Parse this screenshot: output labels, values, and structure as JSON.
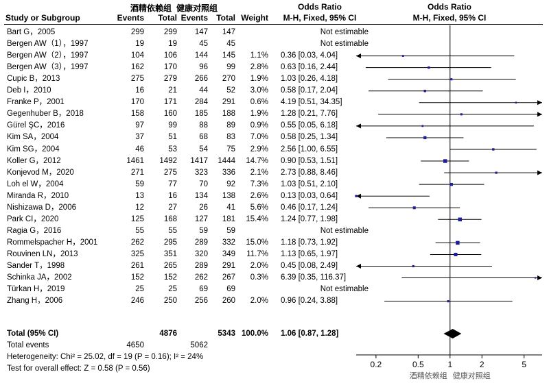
{
  "header": {
    "group1": "酒精依赖组",
    "group2": "健康对照组",
    "or_left_title": "Odds Ratio",
    "or_right_title": "Odds Ratio",
    "col_study": "Study or Subgroup",
    "col_events1": "Events",
    "col_total1": "Total",
    "col_events2": "Events",
    "col_total2": "Total",
    "col_weight": "Weight",
    "col_method_left": "M-H, Fixed, 95% CI",
    "col_method_right": "M-H, Fixed, 95% CI"
  },
  "rows": [
    {
      "study": "Bart G，2005",
      "e1": "299",
      "t1": "299",
      "e2": "147",
      "t2": "147",
      "weight": "",
      "ci_text": "Not estimable"
    },
    {
      "study": "Bergen AW（1），1997",
      "e1": "19",
      "t1": "19",
      "e2": "45",
      "t2": "45",
      "weight": "",
      "ci_text": "Not estimable"
    },
    {
      "study": "Bergen AW（2），1997",
      "e1": "104",
      "t1": "106",
      "e2": "144",
      "t2": "145",
      "weight": "1.1%",
      "ci_text": "0.36 [0.03, 4.04]"
    },
    {
      "study": "Bergen AW（3），1997",
      "e1": "162",
      "t1": "170",
      "e2": "96",
      "t2": "99",
      "weight": "2.8%",
      "ci_text": "0.63 [0.16, 2.44]"
    },
    {
      "study": "Cupic B，2013",
      "e1": "275",
      "t1": "279",
      "e2": "266",
      "t2": "270",
      "weight": "1.9%",
      "ci_text": "1.03 [0.26, 4.18]"
    },
    {
      "study": "Deb I，2010",
      "e1": "16",
      "t1": "21",
      "e2": "44",
      "t2": "52",
      "weight": "3.0%",
      "ci_text": "0.58 [0.17, 2.04]"
    },
    {
      "study": "Franke P，2001",
      "e1": "170",
      "t1": "171",
      "e2": "284",
      "t2": "291",
      "weight": "0.6%",
      "ci_text": "4.19 [0.51, 34.35]"
    },
    {
      "study": "Gegenhuber B，2018",
      "e1": "158",
      "t1": "160",
      "e2": "185",
      "t2": "188",
      "weight": "1.9%",
      "ci_text": "1.28 [0.21, 7.76]"
    },
    {
      "study": "Gürel ŞC，2016",
      "e1": "97",
      "t1": "99",
      "e2": "88",
      "t2": "89",
      "weight": "0.9%",
      "ci_text": "0.55 [0.05, 6.18]"
    },
    {
      "study": "Kim SA，2004",
      "e1": "37",
      "t1": "51",
      "e2": "68",
      "t2": "83",
      "weight": "7.0%",
      "ci_text": "0.58 [0.25, 1.34]"
    },
    {
      "study": "Kim SG，2004",
      "e1": "46",
      "t1": "53",
      "e2": "54",
      "t2": "75",
      "weight": "2.9%",
      "ci_text": "2.56 [1.00, 6.55]"
    },
    {
      "study": "Koller G，2012",
      "e1": "1461",
      "t1": "1492",
      "e2": "1417",
      "t2": "1444",
      "weight": "14.7%",
      "ci_text": "0.90 [0.53, 1.51]"
    },
    {
      "study": "Konjevod M，2020",
      "e1": "271",
      "t1": "275",
      "e2": "323",
      "t2": "336",
      "weight": "2.1%",
      "ci_text": "2.73 [0.88, 8.46]"
    },
    {
      "study": "Loh el W，2004",
      "e1": "59",
      "t1": "77",
      "e2": "70",
      "t2": "92",
      "weight": "7.3%",
      "ci_text": "1.03 [0.51, 2.10]"
    },
    {
      "study": "Miranda R，2010",
      "e1": "13",
      "t1": "16",
      "e2": "134",
      "t2": "138",
      "weight": "2.6%",
      "ci_text": "0.13 [0.03, 0.64]"
    },
    {
      "study": "Nishizawa D，2006",
      "e1": "12",
      "t1": "27",
      "e2": "26",
      "t2": "41",
      "weight": "5.6%",
      "ci_text": "0.46 [0.17, 1.24]"
    },
    {
      "study": "Park CI，2020",
      "e1": "125",
      "t1": "168",
      "e2": "127",
      "t2": "181",
      "weight": "15.4%",
      "ci_text": "1.24 [0.77, 1.98]"
    },
    {
      "study": "Ragia G，2016",
      "e1": "55",
      "t1": "55",
      "e2": "59",
      "t2": "59",
      "weight": "",
      "ci_text": "Not estimable"
    },
    {
      "study": "Rommelspacher H，2001",
      "e1": "262",
      "t1": "295",
      "e2": "289",
      "t2": "332",
      "weight": "15.0%",
      "ci_text": "1.18 [0.73, 1.92]"
    },
    {
      "study": "Rouvinen LN，2013",
      "e1": "325",
      "t1": "351",
      "e2": "320",
      "t2": "349",
      "weight": "11.7%",
      "ci_text": "1.13 [0.65, 1.97]"
    },
    {
      "study": "Sander T，1998",
      "e1": "261",
      "t1": "265",
      "e2": "289",
      "t2": "291",
      "weight": "2.0%",
      "ci_text": "0.45 [0.08, 2.49]"
    },
    {
      "study": "Schinka JA，2002",
      "e1": "152",
      "t1": "152",
      "e2": "262",
      "t2": "267",
      "weight": "0.3%",
      "ci_text": "6.39 [0.35, 116.37]"
    },
    {
      "study": "Türkan H，2019",
      "e1": "25",
      "t1": "25",
      "e2": "69",
      "t2": "69",
      "weight": "",
      "ci_text": "Not estimable"
    },
    {
      "study": "Zhang H，2006",
      "e1": "246",
      "t1": "250",
      "e2": "256",
      "t2": "260",
      "weight": "2.0%",
      "ci_text": "0.96 [0.24, 3.88]"
    }
  ],
  "total": {
    "label": "Total (95% CI)",
    "t1": "4876",
    "t2": "5343",
    "weight": "100.0%",
    "ci_text": "1.06 [0.87, 1.28]",
    "events_label": "Total events",
    "events1": "4650",
    "events2": "5062",
    "heterogeneity": "Heterogeneity: Chi² = 25.02, df = 19 (P = 0.16); I² = 24%",
    "overall_effect": "Test for overall effect: Z = 0.58 (P = 0.56)"
  },
  "axis": {
    "ticks": [
      "0.2",
      "0.5",
      "1",
      "2",
      "5"
    ],
    "favours_left": "酒精依赖组",
    "favours_right": "健康对照组"
  },
  "chart_data": {
    "type": "forest",
    "scale": "log",
    "xlim": [
      0.13,
      7.4
    ],
    "reference_line": 1,
    "marker_color": "#1f1f9e",
    "studies": [
      {
        "name": "Bart G，2005",
        "or": null,
        "lo": null,
        "hi": null,
        "weight": null
      },
      {
        "name": "Bergen AW（1），1997",
        "or": null,
        "lo": null,
        "hi": null,
        "weight": null
      },
      {
        "name": "Bergen AW（2），1997",
        "or": 0.36,
        "lo": 0.03,
        "hi": 4.04,
        "weight": 1.1
      },
      {
        "name": "Bergen AW（3），1997",
        "or": 0.63,
        "lo": 0.16,
        "hi": 2.44,
        "weight": 2.8
      },
      {
        "name": "Cupic B，2013",
        "or": 1.03,
        "lo": 0.26,
        "hi": 4.18,
        "weight": 1.9
      },
      {
        "name": "Deb I，2010",
        "or": 0.58,
        "lo": 0.17,
        "hi": 2.04,
        "weight": 3.0
      },
      {
        "name": "Franke P，2001",
        "or": 4.19,
        "lo": 0.51,
        "hi": 34.35,
        "weight": 0.6
      },
      {
        "name": "Gegenhuber B，2018",
        "or": 1.28,
        "lo": 0.21,
        "hi": 7.76,
        "weight": 1.9
      },
      {
        "name": "Gürel ŞC，2016",
        "or": 0.55,
        "lo": 0.05,
        "hi": 6.18,
        "weight": 0.9
      },
      {
        "name": "Kim SA，2004",
        "or": 0.58,
        "lo": 0.25,
        "hi": 1.34,
        "weight": 7.0
      },
      {
        "name": "Kim SG，2004",
        "or": 2.56,
        "lo": 1.0,
        "hi": 6.55,
        "weight": 2.9
      },
      {
        "name": "Koller G，2012",
        "or": 0.9,
        "lo": 0.53,
        "hi": 1.51,
        "weight": 14.7
      },
      {
        "name": "Konjevod M，2020",
        "or": 2.73,
        "lo": 0.88,
        "hi": 8.46,
        "weight": 2.1
      },
      {
        "name": "Loh el W，2004",
        "or": 1.03,
        "lo": 0.51,
        "hi": 2.1,
        "weight": 7.3
      },
      {
        "name": "Miranda R，2010",
        "or": 0.13,
        "lo": 0.03,
        "hi": 0.64,
        "weight": 2.6
      },
      {
        "name": "Nishizawa D，2006",
        "or": 0.46,
        "lo": 0.17,
        "hi": 1.24,
        "weight": 5.6
      },
      {
        "name": "Park CI，2020",
        "or": 1.24,
        "lo": 0.77,
        "hi": 1.98,
        "weight": 15.4
      },
      {
        "name": "Ragia G，2016",
        "or": null,
        "lo": null,
        "hi": null,
        "weight": null
      },
      {
        "name": "Rommelspacher H，2001",
        "or": 1.18,
        "lo": 0.73,
        "hi": 1.92,
        "weight": 15.0
      },
      {
        "name": "Rouvinen LN，2013",
        "or": 1.13,
        "lo": 0.65,
        "hi": 1.97,
        "weight": 11.7
      },
      {
        "name": "Sander T，1998",
        "or": 0.45,
        "lo": 0.08,
        "hi": 2.49,
        "weight": 2.0
      },
      {
        "name": "Schinka JA，2002",
        "or": 6.39,
        "lo": 0.35,
        "hi": 116.37,
        "weight": 0.3
      },
      {
        "name": "Türkan H，2019",
        "or": null,
        "lo": null,
        "hi": null,
        "weight": null
      },
      {
        "name": "Zhang H，2006",
        "or": 0.96,
        "lo": 0.24,
        "hi": 3.88,
        "weight": 2.0
      }
    ],
    "pooled": {
      "or": 1.06,
      "lo": 0.87,
      "hi": 1.28
    }
  }
}
